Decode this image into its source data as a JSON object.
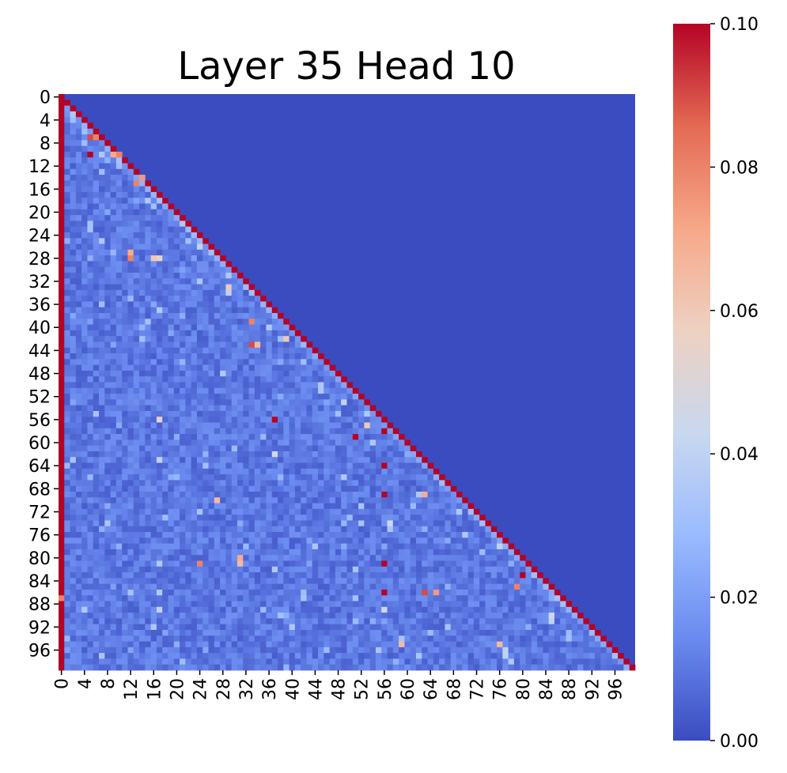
{
  "chart_data": {
    "type": "heatmap",
    "title": "Layer 35 Head 10",
    "xlabel": "",
    "ylabel": "",
    "size": 100,
    "mask": "causal-lower-triangular",
    "x_tick_labels": [
      "0",
      "4",
      "8",
      "12",
      "16",
      "20",
      "24",
      "28",
      "32",
      "36",
      "40",
      "44",
      "48",
      "52",
      "56",
      "60",
      "64",
      "68",
      "72",
      "76",
      "80",
      "84",
      "88",
      "92",
      "96"
    ],
    "y_tick_labels": [
      "0",
      "4",
      "8",
      "12",
      "16",
      "20",
      "24",
      "28",
      "32",
      "36",
      "40",
      "44",
      "48",
      "52",
      "56",
      "60",
      "64",
      "68",
      "72",
      "76",
      "80",
      "84",
      "88",
      "92",
      "96"
    ],
    "colormap": "coolwarm",
    "colormap_stops": [
      "#3b4cc0",
      "#6a8bef",
      "#9abbff",
      "#c9d8ef",
      "#edd1c2",
      "#f7a889",
      "#e36a53",
      "#b40426"
    ],
    "vmin": 0.0,
    "vmax": 0.1,
    "colorbar_tick_labels": [
      "0.00",
      "0.02",
      "0.04",
      "0.06",
      "0.08",
      "0.10"
    ],
    "colorbar_tick_values": [
      0.0,
      0.02,
      0.04,
      0.06,
      0.08,
      0.1
    ],
    "first_column_value": 0.1,
    "diagonal_value": 0.1,
    "masked_value": 0.0,
    "background_level": 0.004,
    "bright_cells": [
      {
        "row": 1,
        "col": 1,
        "value": 0.1
      },
      {
        "row": 5,
        "col": 5,
        "value": 0.1
      },
      {
        "row": 7,
        "col": 5,
        "value": 0.09
      },
      {
        "row": 7,
        "col": 6,
        "value": 0.08
      },
      {
        "row": 10,
        "col": 5,
        "value": 0.1
      },
      {
        "row": 10,
        "col": 9,
        "value": 0.07
      },
      {
        "row": 10,
        "col": 10,
        "value": 0.08
      },
      {
        "row": 15,
        "col": 13,
        "value": 0.08
      },
      {
        "row": 14,
        "col": 14,
        "value": 0.075
      },
      {
        "row": 28,
        "col": 12,
        "value": 0.08
      },
      {
        "row": 27,
        "col": 12,
        "value": 0.07
      },
      {
        "row": 28,
        "col": 16,
        "value": 0.06
      },
      {
        "row": 28,
        "col": 17,
        "value": 0.055
      },
      {
        "row": 33,
        "col": 29,
        "value": 0.06
      },
      {
        "row": 39,
        "col": 33,
        "value": 0.08
      },
      {
        "row": 43,
        "col": 33,
        "value": 0.09
      },
      {
        "row": 43,
        "col": 34,
        "value": 0.065
      },
      {
        "row": 42,
        "col": 39,
        "value": 0.06
      },
      {
        "row": 56,
        "col": 17,
        "value": 0.055
      },
      {
        "row": 56,
        "col": 37,
        "value": 0.1
      },
      {
        "row": 57,
        "col": 53,
        "value": 0.06
      },
      {
        "row": 59,
        "col": 51,
        "value": 0.1
      },
      {
        "row": 58,
        "col": 56,
        "value": 0.1
      },
      {
        "row": 64,
        "col": 56,
        "value": 0.1
      },
      {
        "row": 69,
        "col": 56,
        "value": 0.1
      },
      {
        "row": 69,
        "col": 63,
        "value": 0.07
      },
      {
        "row": 70,
        "col": 27,
        "value": 0.065
      },
      {
        "row": 80,
        "col": 31,
        "value": 0.07
      },
      {
        "row": 81,
        "col": 31,
        "value": 0.065
      },
      {
        "row": 81,
        "col": 24,
        "value": 0.08
      },
      {
        "row": 81,
        "col": 56,
        "value": 0.1
      },
      {
        "row": 83,
        "col": 80,
        "value": 0.1
      },
      {
        "row": 85,
        "col": 79,
        "value": 0.08
      },
      {
        "row": 86,
        "col": 56,
        "value": 0.1
      },
      {
        "row": 86,
        "col": 63,
        "value": 0.09
      },
      {
        "row": 86,
        "col": 65,
        "value": 0.075
      },
      {
        "row": 87,
        "col": 0,
        "value": 0.08
      },
      {
        "row": 92,
        "col": 0,
        "value": 0.1
      },
      {
        "row": 95,
        "col": 59,
        "value": 0.065
      },
      {
        "row": 95,
        "col": 76,
        "value": 0.065
      }
    ],
    "light_cells": [
      {
        "row": 3,
        "col": 2,
        "value": 0.035
      },
      {
        "row": 4,
        "col": 2,
        "value": 0.03
      },
      {
        "row": 6,
        "col": 4,
        "value": 0.03
      },
      {
        "row": 8,
        "col": 4,
        "value": 0.03
      },
      {
        "row": 10,
        "col": 7,
        "value": 0.035
      },
      {
        "row": 12,
        "col": 10,
        "value": 0.03
      },
      {
        "row": 18,
        "col": 15,
        "value": 0.035
      },
      {
        "row": 19,
        "col": 16,
        "value": 0.03
      },
      {
        "row": 22,
        "col": 21,
        "value": 0.035
      },
      {
        "row": 25,
        "col": 22,
        "value": 0.03
      },
      {
        "row": 26,
        "col": 24,
        "value": 0.04
      },
      {
        "row": 31,
        "col": 29,
        "value": 0.035
      },
      {
        "row": 34,
        "col": 29,
        "value": 0.04
      },
      {
        "row": 37,
        "col": 17,
        "value": 0.035
      },
      {
        "row": 40,
        "col": 36,
        "value": 0.035
      },
      {
        "row": 46,
        "col": 42,
        "value": 0.03
      },
      {
        "row": 48,
        "col": 28,
        "value": 0.035
      },
      {
        "row": 50,
        "col": 45,
        "value": 0.035
      },
      {
        "row": 53,
        "col": 49,
        "value": 0.04
      },
      {
        "row": 55,
        "col": 53,
        "value": 0.035
      },
      {
        "row": 60,
        "col": 54,
        "value": 0.035
      },
      {
        "row": 62,
        "col": 37,
        "value": 0.045
      },
      {
        "row": 63,
        "col": 17,
        "value": 0.04
      },
      {
        "row": 66,
        "col": 49,
        "value": 0.035
      },
      {
        "row": 72,
        "col": 69,
        "value": 0.035
      },
      {
        "row": 74,
        "col": 57,
        "value": 0.045
      },
      {
        "row": 76,
        "col": 70,
        "value": 0.035
      },
      {
        "row": 78,
        "col": 76,
        "value": 0.04
      },
      {
        "row": 81,
        "col": 17,
        "value": 0.035
      },
      {
        "row": 82,
        "col": 37,
        "value": 0.035
      },
      {
        "row": 86,
        "col": 17,
        "value": 0.035
      },
      {
        "row": 89,
        "col": 56,
        "value": 0.045
      },
      {
        "row": 89,
        "col": 17,
        "value": 0.04
      },
      {
        "row": 90,
        "col": 85,
        "value": 0.045
      },
      {
        "row": 91,
        "col": 85,
        "value": 0.04
      },
      {
        "row": 96,
        "col": 77,
        "value": 0.04
      },
      {
        "row": 97,
        "col": 77,
        "value": 0.04
      },
      {
        "row": 98,
        "col": 78,
        "value": 0.035
      }
    ]
  }
}
